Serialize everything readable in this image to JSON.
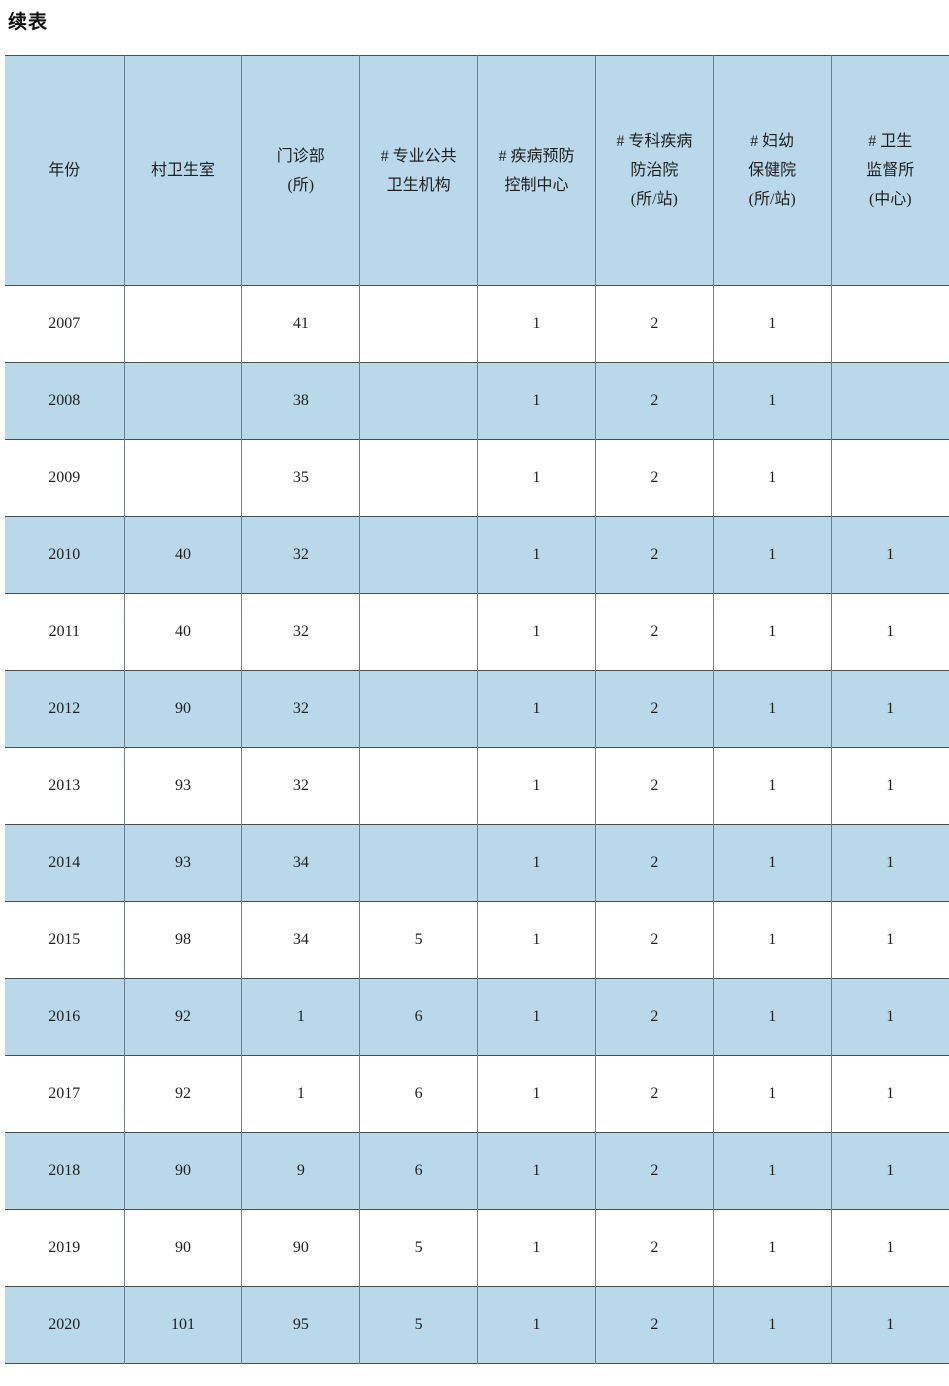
{
  "page": {
    "title": "续表"
  },
  "table": {
    "columns": [
      {
        "label_lines": [
          "年份"
        ]
      },
      {
        "label_lines": [
          "村卫生室"
        ]
      },
      {
        "label_lines": [
          "门诊部",
          "(所)"
        ]
      },
      {
        "label_lines": [
          "# 专业公共",
          "卫生机构"
        ]
      },
      {
        "label_lines": [
          "# 疾病预防",
          "控制中心"
        ]
      },
      {
        "label_lines": [
          "# 专科疾病",
          "防治院",
          "(所/站)"
        ]
      },
      {
        "label_lines": [
          "# 妇幼",
          "保健院",
          "(所/站)"
        ]
      },
      {
        "label_lines": [
          "# 卫生",
          "监督所",
          "(中心)"
        ]
      }
    ],
    "rows": [
      {
        "year": "2007",
        "values": [
          "",
          "41",
          "",
          "1",
          "2",
          "1",
          ""
        ]
      },
      {
        "year": "2008",
        "values": [
          "",
          "38",
          "",
          "1",
          "2",
          "1",
          ""
        ]
      },
      {
        "year": "2009",
        "values": [
          "",
          "35",
          "",
          "1",
          "2",
          "1",
          ""
        ]
      },
      {
        "year": "2010",
        "values": [
          "40",
          "32",
          "",
          "1",
          "2",
          "1",
          "1"
        ]
      },
      {
        "year": "2011",
        "values": [
          "40",
          "32",
          "",
          "1",
          "2",
          "1",
          "1"
        ]
      },
      {
        "year": "2012",
        "values": [
          "90",
          "32",
          "",
          "1",
          "2",
          "1",
          "1"
        ]
      },
      {
        "year": "2013",
        "values": [
          "93",
          "32",
          "",
          "1",
          "2",
          "1",
          "1"
        ]
      },
      {
        "year": "2014",
        "values": [
          "93",
          "34",
          "",
          "1",
          "2",
          "1",
          "1"
        ]
      },
      {
        "year": "2015",
        "values": [
          "98",
          "34",
          "5",
          "1",
          "2",
          "1",
          "1"
        ]
      },
      {
        "year": "2016",
        "values": [
          "92",
          "1",
          "6",
          "1",
          "2",
          "1",
          "1"
        ]
      },
      {
        "year": "2017",
        "values": [
          "92",
          "1",
          "6",
          "1",
          "2",
          "1",
          "1"
        ]
      },
      {
        "year": "2018",
        "values": [
          "90",
          "9",
          "6",
          "1",
          "2",
          "1",
          "1"
        ]
      },
      {
        "year": "2019",
        "values": [
          "90",
          "90",
          "5",
          "1",
          "2",
          "1",
          "1"
        ]
      },
      {
        "year": "2020",
        "values": [
          "101",
          "95",
          "5",
          "1",
          "2",
          "1",
          "1"
        ]
      }
    ],
    "colors": {
      "row_blue": "#b9d8e9",
      "row_white": "#ffffff",
      "horizontal_border": "#4d4d4d",
      "vertical_border": "#6f7e92",
      "text": "#1f1f1f"
    }
  }
}
